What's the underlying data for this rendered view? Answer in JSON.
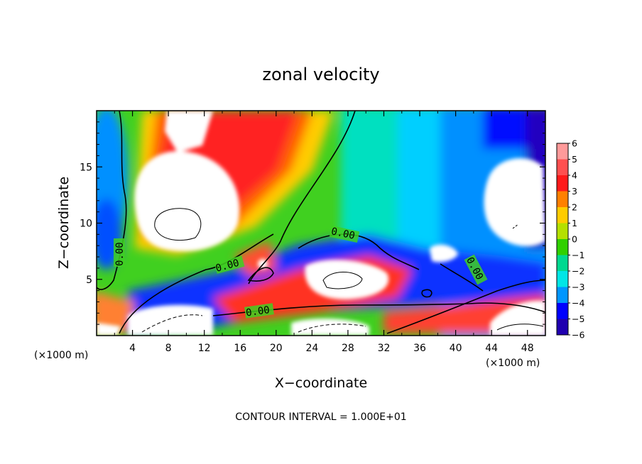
{
  "chart_data": {
    "type": "heatmap",
    "title": "zonal velocity",
    "xlabel": "X−coordinate",
    "ylabel": "Z−coordinate",
    "x_unit": "(×1000 m)",
    "y_unit": "(×1000 m)",
    "xlim": [
      0,
      50
    ],
    "ylim": [
      0,
      20
    ],
    "x_ticks": [
      4,
      8,
      12,
      16,
      20,
      24,
      28,
      32,
      36,
      40,
      44,
      48
    ],
    "y_ticks": [
      5,
      10,
      15
    ],
    "colorbar": {
      "min": -6,
      "max": 6,
      "levels": [
        {
          "value": 6,
          "label": "6",
          "color": "#ff9a9a"
        },
        {
          "value": 5,
          "label": "5",
          "color": "#ff5050"
        },
        {
          "value": 4,
          "label": "4",
          "color": "#ff1a1a"
        },
        {
          "value": 3,
          "label": "3",
          "color": "#ff8000"
        },
        {
          "value": 2,
          "label": "2",
          "color": "#ffcc00"
        },
        {
          "value": 1,
          "label": "1",
          "color": "#b4e000"
        },
        {
          "value": 0,
          "label": "0",
          "color": "#30d000"
        },
        {
          "value": -1,
          "label": "−1",
          "color": "#00d890"
        },
        {
          "value": -2,
          "label": "−2",
          "color": "#00e6e6"
        },
        {
          "value": -3,
          "label": "−3",
          "color": "#0096ff"
        },
        {
          "value": -4,
          "label": "−4",
          "color": "#0000ff"
        },
        {
          "value": -5,
          "label": "−5",
          "color": "#2000b0"
        },
        {
          "value": -6,
          "label": "−6",
          "color": "#6000a0"
        }
      ]
    },
    "contour_label": "0.00",
    "contour_interval_text": "CONTOUR INTERVAL = 1.000E+01"
  }
}
